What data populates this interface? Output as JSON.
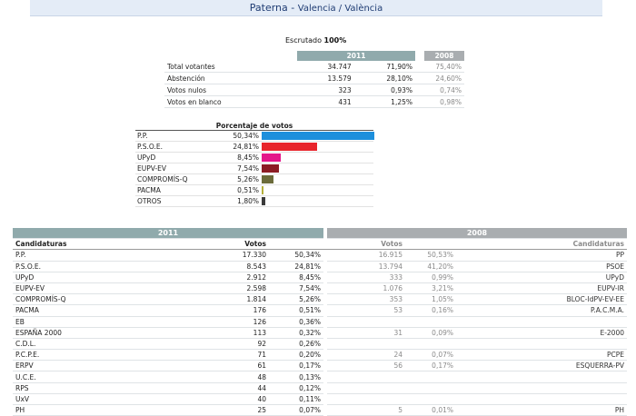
{
  "header": {
    "title": "Paterna",
    "separator": " - ",
    "subtitle": "Valencia / València"
  },
  "escrutado": {
    "label": "Escrutado",
    "value": "100%"
  },
  "summary": {
    "year_current": "2011",
    "year_prev": "2008",
    "rows": [
      {
        "label": "Total votantes",
        "votes": "34.747",
        "pct": "71,90%",
        "prev": "75,40%"
      },
      {
        "label": "Abstención",
        "votes": "13.579",
        "pct": "28,10%",
        "prev": "24,60%"
      },
      {
        "label": "Votos nulos",
        "votes": "323",
        "pct": "0,93%",
        "prev": "0,74%"
      },
      {
        "label": "Votos en blanco",
        "votes": "431",
        "pct": "1,25%",
        "prev": "0,98%"
      }
    ]
  },
  "chart_data": {
    "type": "bar",
    "title": "Porcentaje de votos",
    "categories": [
      "P.P.",
      "P.S.O.E.",
      "UPyD",
      "EUPV-EV",
      "COMPROMÍS-Q",
      "PACMA",
      "OTROS"
    ],
    "values": [
      50.34,
      24.81,
      8.45,
      7.54,
      5.26,
      0.51,
      1.8
    ],
    "labels": [
      "50,34%",
      "24,81%",
      "8,45%",
      "7,54%",
      "5,26%",
      "0,51%",
      "1,80%"
    ],
    "colors": [
      "#1d8fdc",
      "#e8242b",
      "#e4168a",
      "#8c1c24",
      "#6b6b3a",
      "#b5b03a",
      "#3a3a3a"
    ]
  },
  "results": {
    "year_current": "2011",
    "year_prev": "2008",
    "col_candidaturas": "Candidaturas",
    "col_votos": "Votos",
    "col_votos_prev": "Votos",
    "col_candidaturas_prev": "Candidaturas",
    "rows": [
      {
        "name": "P.P.",
        "votes": "17.330",
        "pct": "50,34%",
        "pvotes": "16.915",
        "ppct": "50,53%",
        "pname": "PP"
      },
      {
        "name": "P.S.O.E.",
        "votes": "8.543",
        "pct": "24,81%",
        "pvotes": "13.794",
        "ppct": "41,20%",
        "pname": "PSOE"
      },
      {
        "name": "UPyD",
        "votes": "2.912",
        "pct": "8,45%",
        "pvotes": "333",
        "ppct": "0,99%",
        "pname": "UPyD"
      },
      {
        "name": "EUPV-EV",
        "votes": "2.598",
        "pct": "7,54%",
        "pvotes": "1.076",
        "ppct": "3,21%",
        "pname": "EUPV-IR"
      },
      {
        "name": "COMPROMÍS-Q",
        "votes": "1.814",
        "pct": "5,26%",
        "pvotes": "353",
        "ppct": "1,05%",
        "pname": "BLOC-IdPV-EV-EE"
      },
      {
        "name": "PACMA",
        "votes": "176",
        "pct": "0,51%",
        "pvotes": "53",
        "ppct": "0,16%",
        "pname": "P.A.C.M.A."
      },
      {
        "name": "EB",
        "votes": "126",
        "pct": "0,36%",
        "pvotes": "",
        "ppct": "",
        "pname": ""
      },
      {
        "name": "ESPAÑA 2000",
        "votes": "113",
        "pct": "0,32%",
        "pvotes": "31",
        "ppct": "0,09%",
        "pname": "E-2000"
      },
      {
        "name": "C.D.L.",
        "votes": "92",
        "pct": "0,26%",
        "pvotes": "",
        "ppct": "",
        "pname": ""
      },
      {
        "name": "P.C.P.E.",
        "votes": "71",
        "pct": "0,20%",
        "pvotes": "24",
        "ppct": "0,07%",
        "pname": "PCPE"
      },
      {
        "name": "ERPV",
        "votes": "61",
        "pct": "0,17%",
        "pvotes": "56",
        "ppct": "0,17%",
        "pname": "ESQUERRA-PV"
      },
      {
        "name": "U.C.E.",
        "votes": "48",
        "pct": "0,13%",
        "pvotes": "",
        "ppct": "",
        "pname": ""
      },
      {
        "name": "RPS",
        "votes": "44",
        "pct": "0,12%",
        "pvotes": "",
        "ppct": "",
        "pname": ""
      },
      {
        "name": "UxV",
        "votes": "40",
        "pct": "0,11%",
        "pvotes": "",
        "ppct": "",
        "pname": ""
      },
      {
        "name": "PH",
        "votes": "25",
        "pct": "0,07%",
        "pvotes": "5",
        "ppct": "0,01%",
        "pname": "PH"
      }
    ]
  }
}
